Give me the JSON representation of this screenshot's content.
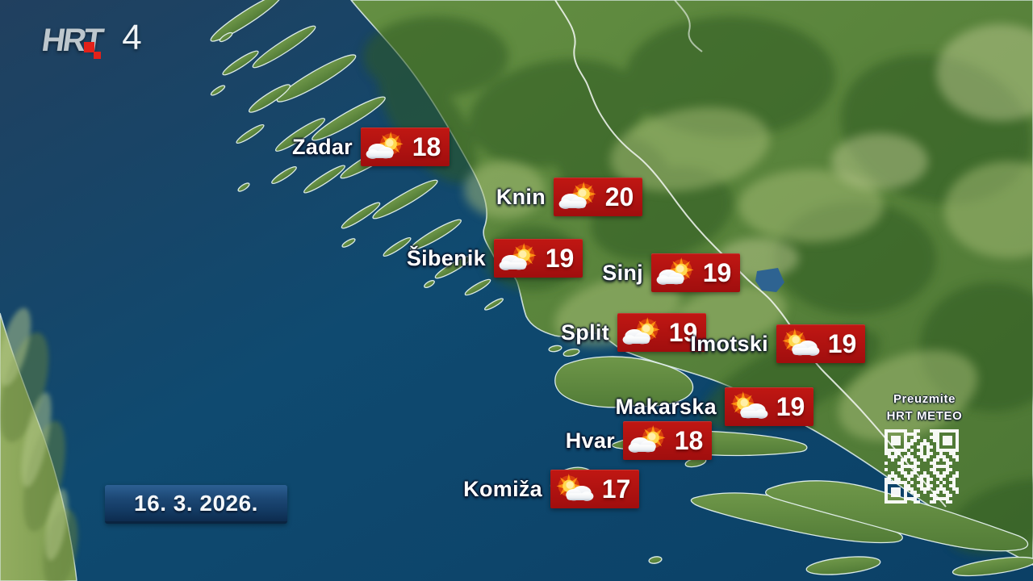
{
  "branding": {
    "logo": "HRT",
    "channel": "4"
  },
  "date": {
    "label": "16. 3. 2026."
  },
  "promo": {
    "line1": "Preuzmite",
    "line2": "HRT METEO",
    "qr_icon": "qr-code"
  },
  "stations": [
    {
      "name": "Zadar",
      "temp": "18",
      "icon": "sun-behind-cloud"
    },
    {
      "name": "Knin",
      "temp": "20",
      "icon": "sun-behind-cloud"
    },
    {
      "name": "Šibenik",
      "temp": "19",
      "icon": "sun-behind-cloud"
    },
    {
      "name": "Sinj",
      "temp": "19",
      "icon": "sun-behind-cloud"
    },
    {
      "name": "Split",
      "temp": "19",
      "icon": "sun-behind-cloud"
    },
    {
      "name": "Imotski",
      "temp": "19",
      "icon": "sun-above-cloud"
    },
    {
      "name": "Makarska",
      "temp": "19",
      "icon": "sun-above-cloud"
    },
    {
      "name": "Hvar",
      "temp": "18",
      "icon": "sun-behind-cloud"
    },
    {
      "name": "Komiža",
      "temp": "17",
      "icon": "sun-above-cloud"
    }
  ],
  "colors": {
    "badge_red": "#b31211",
    "sea": "#0e4a70",
    "land": "#5d8a3f",
    "date_bg": "#17426e",
    "border_line": "#f4f8f4",
    "logo_red": "#e32119"
  }
}
